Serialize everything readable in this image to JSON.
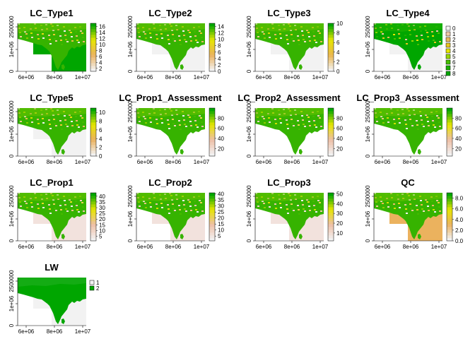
{
  "chart_data": [
    {
      "type": "heatmap",
      "title": "LC_Type1",
      "x_ticks": [
        "6e+06",
        "8e+06",
        "1e+07"
      ],
      "y_ticks": [
        "0",
        "1e+06",
        "2500000"
      ],
      "legend": {
        "kind": "continuous",
        "ticks": [
          "2",
          "4",
          "6",
          "8",
          "10",
          "12",
          "14",
          "16"
        ],
        "range": [
          1,
          17
        ],
        "palette": [
          "#f2f2f2",
          "#ebb25e",
          "#e6e600",
          "#00a600"
        ]
      },
      "nodata": "#00a600"
    },
    {
      "type": "heatmap",
      "title": "LC_Type2",
      "x_ticks": [
        "6e+06",
        "8e+06",
        "1e+07"
      ],
      "y_ticks": [
        "0",
        "1e+06",
        "2500000"
      ],
      "legend": {
        "kind": "continuous",
        "ticks": [
          "0",
          "2",
          "4",
          "6",
          "8",
          "10",
          "12",
          "14"
        ],
        "range": [
          0,
          15
        ],
        "palette": [
          "#f2f2f2",
          "#ebb25e",
          "#e6e600",
          "#00a600"
        ]
      },
      "nodata": "#f2f2f2"
    },
    {
      "type": "heatmap",
      "title": "LC_Type3",
      "x_ticks": [
        "6e+06",
        "8e+06",
        "1e+07"
      ],
      "y_ticks": [
        "0",
        "1e+06",
        "2500000"
      ],
      "legend": {
        "kind": "continuous",
        "ticks": [
          "0",
          "2",
          "4",
          "6",
          "8",
          "10"
        ],
        "range": [
          0,
          10
        ],
        "palette": [
          "#f2f2f2",
          "#eab64e",
          "#e6e600",
          "#00a600"
        ]
      },
      "nodata": "#f2f2f2"
    },
    {
      "type": "heatmap",
      "title": "LC_Type4",
      "x_ticks": [
        "6e+06",
        "8e+06",
        "1e+07"
      ],
      "y_ticks": [
        "0",
        "1e+06",
        "2500000"
      ],
      "legend": {
        "kind": "categorical",
        "labels": [
          "0",
          "1",
          "2",
          "3",
          "4",
          "5",
          "6",
          "7",
          "8"
        ],
        "colors": [
          "#f2f2f2",
          "#eec7a8",
          "#e8b95d",
          "#e7c51f",
          "#e6e600",
          "#9ad800",
          "#46c000",
          "#1bb100",
          "#00a600"
        ]
      },
      "nodata": "#f2f2f2"
    },
    {
      "type": "heatmap",
      "title": "LC_Type5",
      "x_ticks": [
        "6e+06",
        "8e+06",
        "1e+07"
      ],
      "y_ticks": [
        "0",
        "1e+06",
        "2500000"
      ],
      "legend": {
        "kind": "continuous",
        "ticks": [
          "0",
          "2",
          "4",
          "6",
          "8",
          "10"
        ],
        "range": [
          0,
          11
        ],
        "palette": [
          "#f2f2f2",
          "#ebb25e",
          "#e6e600",
          "#00a600"
        ]
      },
      "nodata": "#f2f2f2"
    },
    {
      "type": "heatmap",
      "title": "LC_Prop1_Assessment",
      "x_ticks": [
        "6e+06",
        "8e+06",
        "1e+07"
      ],
      "y_ticks": [
        "0",
        "1e+06",
        "2500000"
      ],
      "legend": {
        "kind": "continuous",
        "ticks": [
          "20",
          "40",
          "60",
          "80"
        ],
        "range": [
          5,
          100
        ],
        "palette": [
          "#f2f2f2",
          "#eebfa6",
          "#e6e600",
          "#00a600"
        ]
      },
      "nodata": "#ffffff"
    },
    {
      "type": "heatmap",
      "title": "LC_Prop2_Assessment",
      "x_ticks": [
        "6e+06",
        "8e+06",
        "1e+07"
      ],
      "y_ticks": [
        "0",
        "1e+06",
        "2500000"
      ],
      "legend": {
        "kind": "continuous",
        "ticks": [
          "20",
          "40",
          "60",
          "80"
        ],
        "range": [
          5,
          100
        ],
        "palette": [
          "#f2f2f2",
          "#eebfa6",
          "#e6e600",
          "#00a600"
        ]
      },
      "nodata": "#ffffff"
    },
    {
      "type": "heatmap",
      "title": "LC_Prop3_Assessment",
      "x_ticks": [
        "6e+06",
        "8e+06",
        "1e+07"
      ],
      "y_ticks": [
        "0",
        "1e+06",
        "2500000"
      ],
      "legend": {
        "kind": "continuous",
        "ticks": [
          "20",
          "40",
          "60",
          "80"
        ],
        "range": [
          5,
          100
        ],
        "palette": [
          "#f2f2f2",
          "#eebfa6",
          "#e6e600",
          "#00a600"
        ]
      },
      "nodata": "#ffffff"
    },
    {
      "type": "heatmap",
      "title": "LC_Prop1",
      "x_ticks": [
        "6e+06",
        "8e+06",
        "1e+07"
      ],
      "y_ticks": [
        "0",
        "1e+06",
        "2500000"
      ],
      "legend": {
        "kind": "continuous",
        "ticks": [
          "5",
          "10",
          "15",
          "20",
          "25",
          "30",
          "35",
          "40"
        ],
        "range": [
          1,
          43
        ],
        "palette": [
          "#f2f2f2",
          "#eebfa6",
          "#e6e600",
          "#00a600"
        ]
      },
      "nodata": "#f2e2dd"
    },
    {
      "type": "heatmap",
      "title": "LC_Prop2",
      "x_ticks": [
        "6e+06",
        "8e+06",
        "1e+07"
      ],
      "y_ticks": [
        "0",
        "1e+06",
        "2500000"
      ],
      "legend": {
        "kind": "continuous",
        "ticks": [
          "5",
          "10",
          "15",
          "20",
          "25",
          "30",
          "35",
          "40"
        ],
        "range": [
          1,
          41
        ],
        "palette": [
          "#f2f2f2",
          "#eebfa6",
          "#e6e600",
          "#00a600"
        ]
      },
      "nodata": "#f2e2dd"
    },
    {
      "type": "heatmap",
      "title": "LC_Prop3",
      "x_ticks": [
        "6e+06",
        "8e+06",
        "1e+07"
      ],
      "y_ticks": [
        "0",
        "1e+06",
        "2500000"
      ],
      "legend": {
        "kind": "continuous",
        "ticks": [
          "10",
          "20",
          "30",
          "40",
          "50"
        ],
        "range": [
          2,
          51
        ],
        "palette": [
          "#f2f2f2",
          "#eebfa6",
          "#e6e600",
          "#00a600"
        ]
      },
      "nodata": "#f2e2dd"
    },
    {
      "type": "heatmap",
      "title": "QC",
      "x_ticks": [
        "6e+06",
        "8e+06",
        "1e+07"
      ],
      "y_ticks": [
        "0",
        "1e+06",
        "2500000"
      ],
      "legend": {
        "kind": "continuous",
        "ticks": [
          "0.0",
          "2.0",
          "4.0",
          "6.0",
          "8.0"
        ],
        "range": [
          0,
          9
        ],
        "palette": [
          "#f2f2f2",
          "#ebb25e",
          "#e6e600",
          "#00a600"
        ]
      },
      "nodata": "#ebb25e"
    },
    {
      "type": "heatmap",
      "title": "LW",
      "x_ticks": [
        "6e+06",
        "8e+06",
        "1e+07"
      ],
      "y_ticks": [
        "0",
        "1e+06",
        "2500000"
      ],
      "legend": {
        "kind": "categorical",
        "labels": [
          "1",
          "2"
        ],
        "colors": [
          "#f2f2f2",
          "#00a600"
        ]
      },
      "nodata": "#f2f2f2"
    }
  ]
}
